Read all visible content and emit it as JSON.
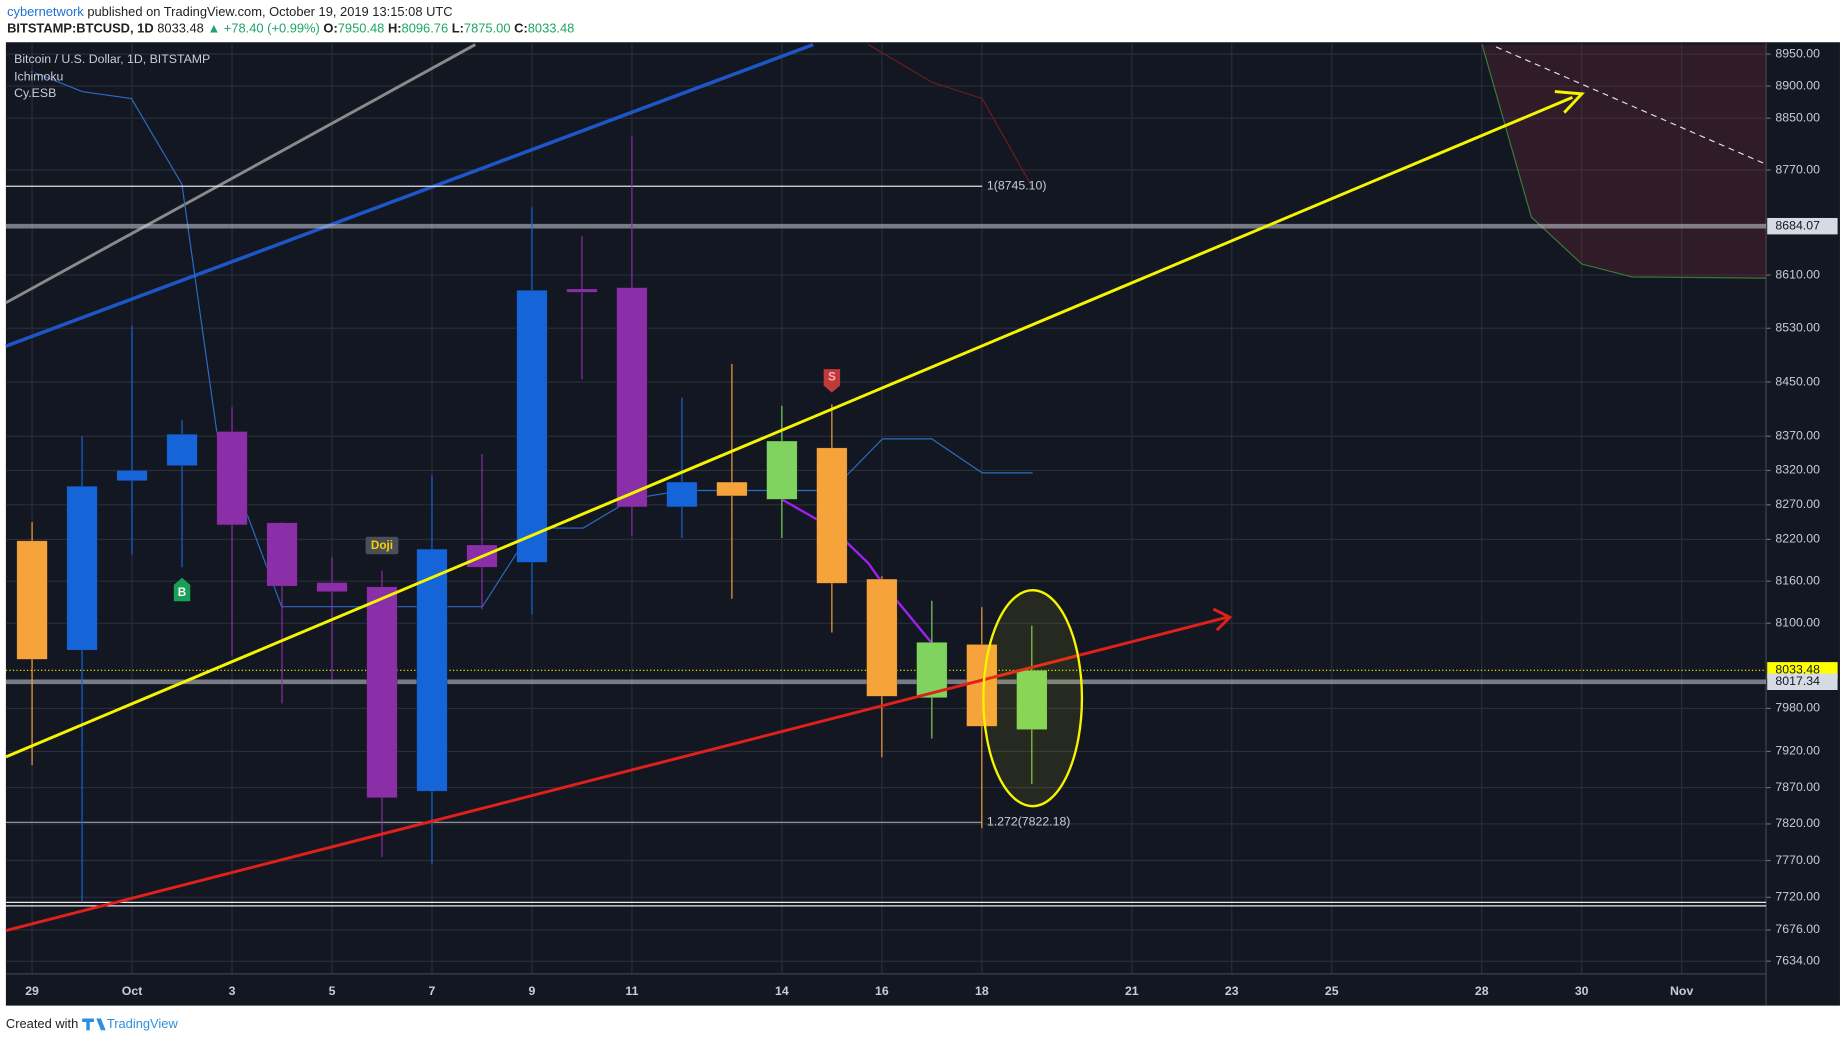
{
  "header": {
    "author": "cybernetwork",
    "published": "published on TradingView.com, October 19, 2019 13:15:08 UTC",
    "symbol": "BITSTAMP:BTCUSD, 1D",
    "last": "8033.48",
    "change": "▲ +78.40 (+0.99%)",
    "ohlc": [
      {
        "key": "O:",
        "value": "7950.48"
      },
      {
        "key": "H:",
        "value": "8096.76"
      },
      {
        "key": "L:",
        "value": "7875.00"
      },
      {
        "key": "C:",
        "value": "8033.48"
      }
    ]
  },
  "footer": {
    "created": "Created with",
    "brand": "TradingView"
  },
  "chart_data": {
    "type": "candlestick",
    "title": "Bitcoin / U.S. Dollar, 1D, BITSTAMP",
    "indicators": [
      "Ichimoku",
      "Cy.ESB"
    ],
    "categories": [
      "29",
      null,
      "Oct",
      null,
      "3",
      null,
      "5",
      null,
      "7",
      null,
      "9",
      null,
      "11",
      null,
      null,
      "14",
      null,
      "16",
      null,
      "18",
      null,
      null,
      "21",
      null,
      "23",
      null,
      "25",
      null,
      null,
      "28",
      null,
      "30",
      null,
      "Nov",
      null
    ],
    "open": [
      8218,
      8062,
      8305,
      8327,
      8377,
      8244,
      8158,
      8152,
      7865,
      8212,
      8187,
      8589,
      8591,
      8267,
      8303,
      8278,
      8353,
      8163,
      7995,
      8070,
      7950.48,
      null,
      null,
      null,
      null,
      null,
      null,
      null,
      null,
      null,
      null,
      null,
      null,
      null,
      null
    ],
    "high": [
      8245,
      8370,
      8534,
      8394,
      8413,
      8245,
      8195,
      8175,
      8313,
      8344,
      8713,
      8669,
      8822,
      8427,
      8477,
      8415,
      8417,
      8167,
      8132,
      8123,
      8096.76,
      null,
      null,
      null,
      null,
      null,
      null,
      null,
      null,
      null,
      null,
      null,
      null,
      null,
      null
    ],
    "low": [
      7901,
      7715,
      8198,
      8180,
      8053,
      7987,
      8020,
      7775,
      7765,
      8120,
      8113,
      8454,
      8225,
      8222,
      8135,
      8222,
      8087,
      7912,
      7938,
      7814,
      7875,
      null,
      null,
      null,
      null,
      null,
      null,
      null,
      null,
      null,
      null,
      null,
      null,
      null,
      null
    ],
    "close": [
      8049,
      8297,
      8320,
      8373,
      8241,
      8153,
      8145,
      7856,
      8206,
      8180,
      8587,
      8584,
      8267,
      8303,
      8283,
      8363,
      8157,
      7997,
      8073,
      7955,
      8033.48,
      null,
      null,
      null,
      null,
      null,
      null,
      null,
      null,
      null,
      null,
      null,
      null,
      null,
      null
    ],
    "colors": [
      "#f7a33b",
      "#1565d8",
      "#1565d8",
      "#1565d8",
      "#8b2fa8",
      "#8b2fa8",
      "#8b2fa8",
      "#8b2fa8",
      "#1565d8",
      "#8b2fa8",
      "#1565d8",
      "#8b2fa8",
      "#8b2fa8",
      "#1565d8",
      "#f7a33b",
      "#7fd35e",
      "#f7a33b",
      "#f7a33b",
      "#7fd35e",
      "#f7a33b",
      "#7fd35e",
      null,
      null,
      null,
      null,
      null,
      null,
      null,
      null,
      null,
      null,
      null,
      null,
      null,
      null
    ],
    "signals": [
      null,
      null,
      null,
      "B",
      null,
      null,
      null,
      "Doji",
      null,
      null,
      null,
      null,
      null,
      null,
      null,
      null,
      "S",
      null,
      null,
      null,
      null,
      null,
      null,
      null,
      null,
      null,
      null,
      null,
      null,
      null,
      null,
      null,
      null,
      null,
      null
    ],
    "log_scale": true,
    "grid": true,
    "ylim": [
      7617,
      8965
    ],
    "yticks": [
      {
        "value": 8950,
        "label": "8950.00"
      },
      {
        "value": 8900,
        "label": "8900.00"
      },
      {
        "value": 8850,
        "label": "8850.00"
      },
      {
        "value": 8770,
        "label": "8770.00"
      },
      {
        "value": 8610,
        "label": "8610.00"
      },
      {
        "value": 8530,
        "label": "8530.00"
      },
      {
        "value": 8450,
        "label": "8450.00"
      },
      {
        "value": 8370,
        "label": "8370.00"
      },
      {
        "value": 8320,
        "label": "8320.00"
      },
      {
        "value": 8270,
        "label": "8270.00"
      },
      {
        "value": 8220,
        "label": "8220.00"
      },
      {
        "value": 8160,
        "label": "8160.00"
      },
      {
        "value": 8100,
        "label": "8100.00"
      },
      {
        "value": 7980,
        "label": "7980.00"
      },
      {
        "value": 7920,
        "label": "7920.00"
      },
      {
        "value": 7870,
        "label": "7870.00"
      },
      {
        "value": 7820,
        "label": "7820.00"
      },
      {
        "value": 7770,
        "label": "7770.00"
      },
      {
        "value": 7720,
        "label": "7720.00"
      },
      {
        "value": 7676,
        "label": "7676.00"
      },
      {
        "value": 7634,
        "label": "7634.00"
      }
    ],
    "price_tags": [
      {
        "value": 8684.07,
        "color": "#d6dae3"
      },
      {
        "value": 8033.48,
        "color": "#ffff00"
      },
      {
        "value": 8017.34,
        "color": "#d6dae3"
      }
    ],
    "fib_levels": [
      {
        "value": 8745.1,
        "label": "1(8745.10)",
        "color": "#e0e0e0"
      },
      {
        "value": 7822.18,
        "label": "1.272(7822.18)",
        "color": "#9aa0aa"
      }
    ]
  }
}
